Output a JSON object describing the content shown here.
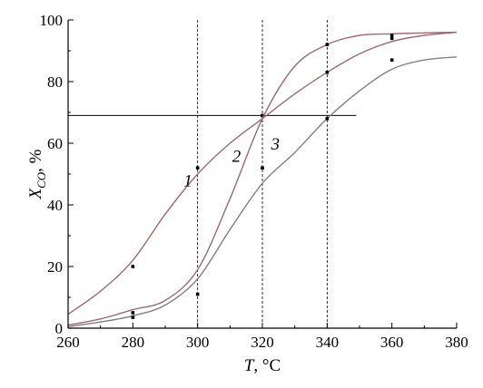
{
  "chart_data": {
    "type": "line",
    "title": "",
    "xlabel": {
      "var": "T",
      "unit": ", °C"
    },
    "ylabel": {
      "var": "X",
      "sub": "CO",
      "unit": ", %"
    },
    "xlim": [
      260,
      380
    ],
    "ylim": [
      0,
      100
    ],
    "x_ticks": [
      260,
      280,
      300,
      320,
      340,
      360,
      380
    ],
    "y_ticks": [
      0,
      20,
      40,
      60,
      80,
      100
    ],
    "series": [
      {
        "name": "1",
        "color": "#9c6a72",
        "curve_x": [
          260,
          270,
          280,
          290,
          300,
          310,
          320,
          330,
          340,
          350,
          360,
          370,
          380
        ],
        "curve_y": [
          4.5,
          12,
          22,
          37,
          50,
          60,
          68,
          76,
          83,
          89,
          93,
          95,
          96
        ],
        "points_x": [
          280,
          320,
          360
        ],
        "points_y": [
          20,
          69,
          94
        ],
        "label_at": [
          297,
          46
        ]
      },
      {
        "name": "2",
        "color": "#9c6a72",
        "curve_x": [
          260,
          270,
          280,
          290,
          300,
          310,
          320,
          330,
          340,
          350,
          360,
          370,
          380
        ],
        "curve_y": [
          1,
          3,
          6,
          9,
          19,
          42,
          68,
          85,
          92,
          95,
          95.5,
          95.8,
          96
        ],
        "points_x": [
          280,
          300,
          320,
          340,
          360
        ],
        "points_y": [
          5,
          52,
          52,
          92,
          95
        ],
        "label_at": [
          312,
          54
        ]
      },
      {
        "name": "3",
        "color": "#808080",
        "curve_x": [
          260,
          270,
          280,
          290,
          300,
          310,
          320,
          330,
          340,
          350,
          360,
          370,
          380
        ],
        "curve_y": [
          0.5,
          2,
          4,
          7.5,
          16,
          32,
          47,
          57,
          68,
          77,
          84,
          87,
          88
        ],
        "points_x": [
          280,
          300,
          340,
          360
        ],
        "points_y": [
          3.5,
          11,
          68,
          87
        ],
        "label_at": [
          324,
          58
        ]
      }
    ],
    "horizontal_line": {
      "y": 69,
      "x_from": 260,
      "x_to": 349
    },
    "vertical_guides": [
      300,
      320,
      340
    ],
    "extra_points": [
      {
        "x": 340,
        "y": 83
      }
    ]
  }
}
